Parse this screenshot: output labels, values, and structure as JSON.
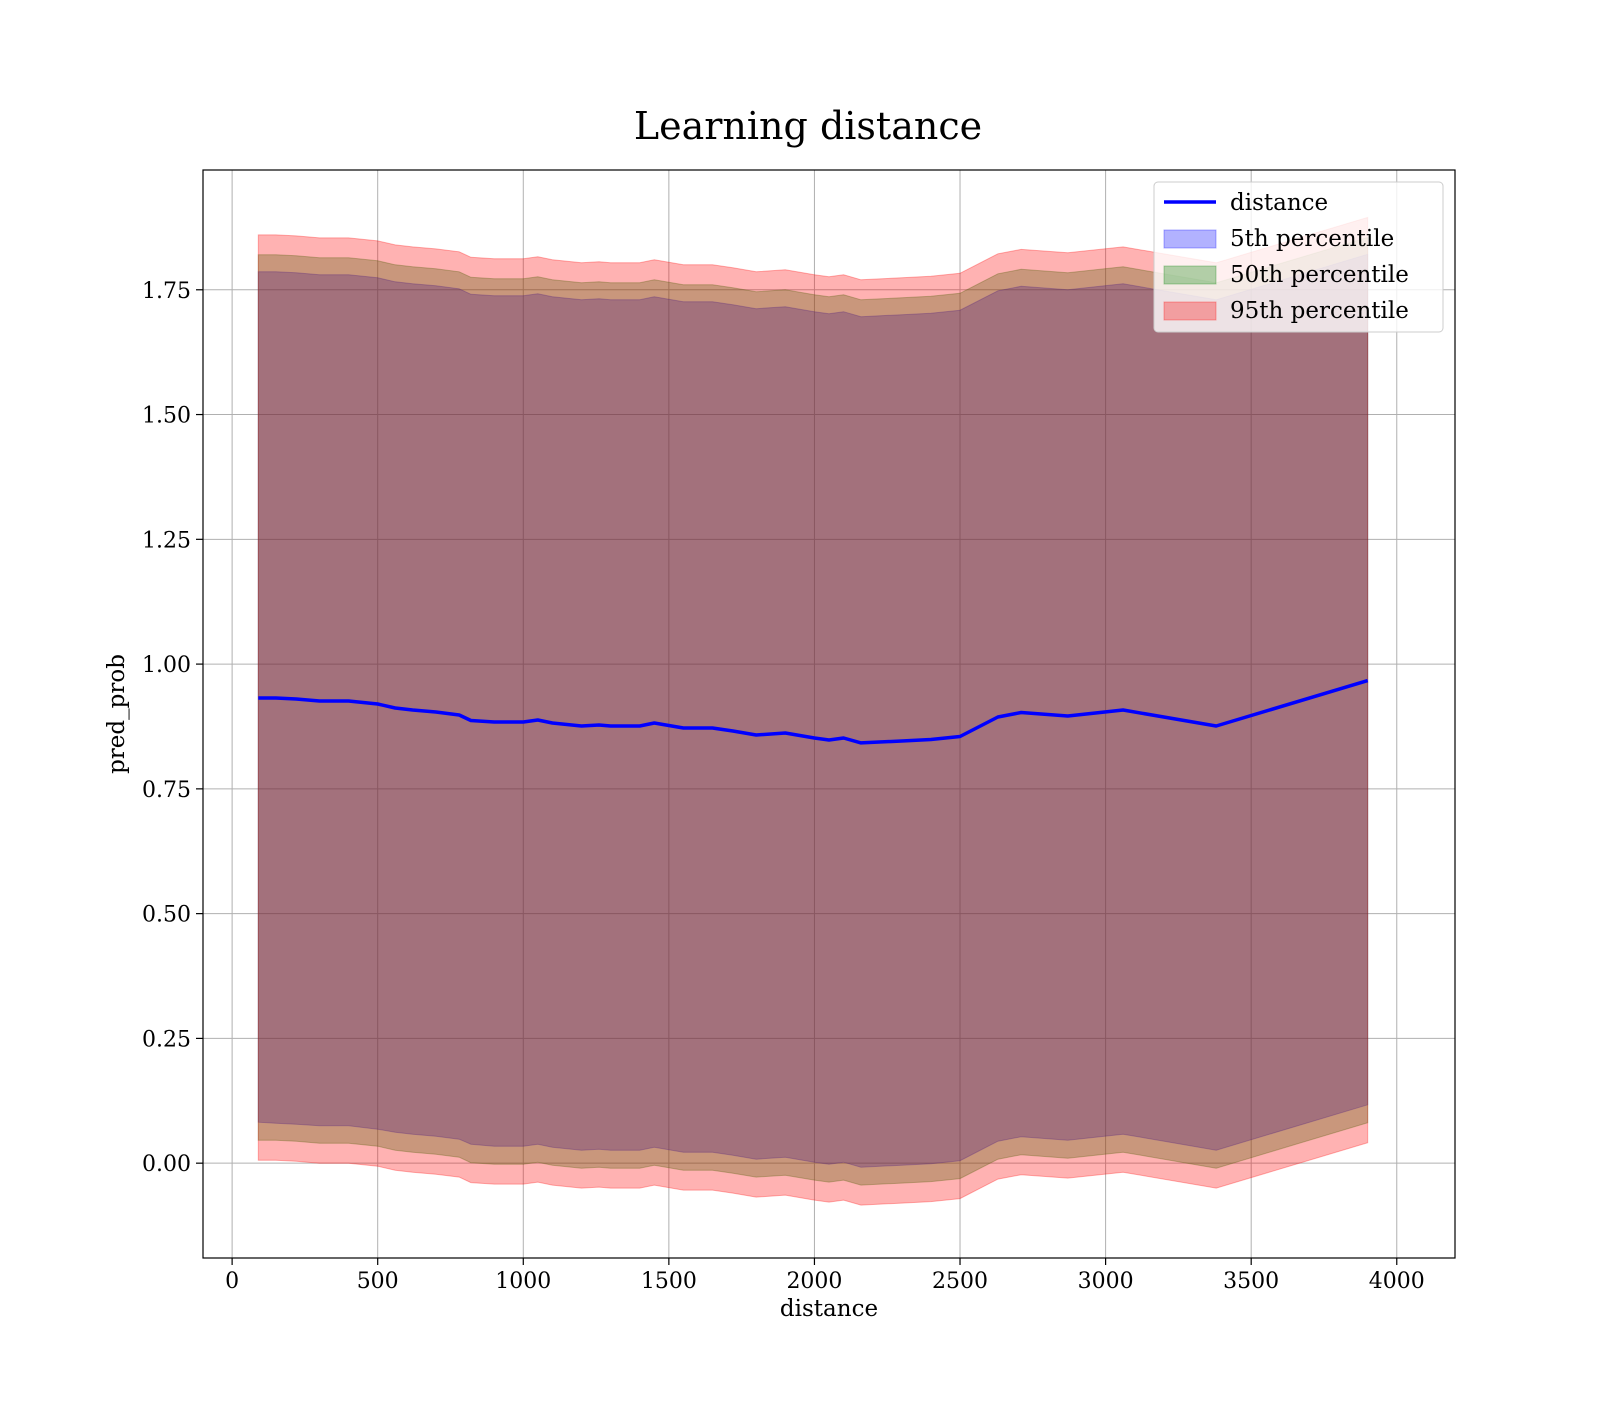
{
  "chart_data": {
    "type": "area",
    "title": "Learning distance",
    "xlabel": "distance",
    "ylabel": "pred_prob",
    "xlim": [
      -100,
      4200
    ],
    "ylim": [
      -0.19,
      1.99
    ],
    "xticks": [
      0,
      500,
      1000,
      1500,
      2000,
      2500,
      3000,
      3500,
      4000
    ],
    "xtick_labels": [
      "0",
      "500",
      "1000",
      "1500",
      "2000",
      "2500",
      "3000",
      "3500",
      "4000"
    ],
    "yticks": [
      0.0,
      0.25,
      0.5,
      0.75,
      1.0,
      1.25,
      1.5,
      1.75
    ],
    "ytick_labels": [
      "0.00",
      "0.25",
      "0.50",
      "0.75",
      "1.00",
      "1.25",
      "1.50",
      "1.75"
    ],
    "grid": true,
    "legend_position": "top-right",
    "x": [
      90,
      150,
      220,
      300,
      400,
      500,
      560,
      620,
      700,
      780,
      820,
      900,
      1000,
      1050,
      1100,
      1200,
      1260,
      1300,
      1400,
      1450,
      1550,
      1650,
      1720,
      1800,
      1900,
      2000,
      2050,
      2100,
      2160,
      2300,
      2400,
      2500,
      2630,
      2710,
      2870,
      3060,
      3380,
      3900
    ],
    "series": [
      {
        "name": "distance",
        "kind": "line",
        "color": "#0000ff",
        "values": [
          0.932,
          0.932,
          0.93,
          0.926,
          0.926,
          0.92,
          0.912,
          0.908,
          0.904,
          0.898,
          0.887,
          0.884,
          0.884,
          0.888,
          0.882,
          0.876,
          0.878,
          0.876,
          0.876,
          0.882,
          0.872,
          0.872,
          0.866,
          0.858,
          0.862,
          0.852,
          0.848,
          0.852,
          0.842,
          0.846,
          0.849,
          0.855,
          0.894,
          0.903,
          0.896,
          0.908,
          0.876,
          0.967
        ]
      },
      {
        "name": "5th percentile",
        "kind": "band",
        "color": "#0000ff",
        "opacity": 0.3,
        "lower": [
          0.082,
          0.08,
          0.078,
          0.075,
          0.075,
          0.068,
          0.062,
          0.058,
          0.054,
          0.048,
          0.038,
          0.034,
          0.034,
          0.038,
          0.032,
          0.026,
          0.028,
          0.026,
          0.026,
          0.032,
          0.022,
          0.022,
          0.016,
          0.008,
          0.012,
          0.002,
          -0.002,
          0.002,
          -0.008,
          -0.004,
          -0.001,
          0.005,
          0.044,
          0.053,
          0.046,
          0.058,
          0.026,
          0.117
        ],
        "upper": [
          1.786,
          1.786,
          1.784,
          1.78,
          1.78,
          1.774,
          1.766,
          1.762,
          1.758,
          1.752,
          1.741,
          1.738,
          1.738,
          1.742,
          1.736,
          1.73,
          1.732,
          1.73,
          1.73,
          1.736,
          1.726,
          1.726,
          1.72,
          1.712,
          1.716,
          1.706,
          1.702,
          1.706,
          1.696,
          1.7,
          1.703,
          1.709,
          1.748,
          1.757,
          1.75,
          1.762,
          1.73,
          1.821
        ]
      },
      {
        "name": "50th percentile",
        "kind": "band",
        "color": "#008000",
        "opacity": 0.3,
        "lower": [
          0.046,
          0.046,
          0.044,
          0.04,
          0.04,
          0.034,
          0.026,
          0.022,
          0.018,
          0.012,
          0.001,
          -0.002,
          -0.002,
          0.002,
          -0.004,
          -0.01,
          -0.008,
          -0.01,
          -0.01,
          -0.004,
          -0.014,
          -0.014,
          -0.02,
          -0.028,
          -0.024,
          -0.034,
          -0.038,
          -0.034,
          -0.044,
          -0.04,
          -0.037,
          -0.031,
          0.008,
          0.017,
          0.01,
          0.022,
          -0.01,
          0.081
        ],
        "upper": [
          1.82,
          1.82,
          1.818,
          1.814,
          1.814,
          1.808,
          1.8,
          1.796,
          1.792,
          1.786,
          1.775,
          1.772,
          1.772,
          1.776,
          1.77,
          1.764,
          1.766,
          1.764,
          1.764,
          1.77,
          1.76,
          1.76,
          1.754,
          1.746,
          1.75,
          1.74,
          1.736,
          1.74,
          1.73,
          1.734,
          1.737,
          1.743,
          1.782,
          1.791,
          1.784,
          1.796,
          1.764,
          1.855
        ]
      },
      {
        "name": "95th percentile",
        "kind": "band",
        "color": "#ff0000",
        "opacity": 0.3,
        "lower": [
          0.006,
          0.006,
          0.004,
          0.0,
          0.0,
          -0.006,
          -0.014,
          -0.018,
          -0.022,
          -0.028,
          -0.039,
          -0.042,
          -0.042,
          -0.038,
          -0.044,
          -0.05,
          -0.048,
          -0.05,
          -0.05,
          -0.044,
          -0.054,
          -0.054,
          -0.06,
          -0.068,
          -0.064,
          -0.074,
          -0.078,
          -0.074,
          -0.084,
          -0.08,
          -0.077,
          -0.071,
          -0.032,
          -0.023,
          -0.03,
          -0.018,
          -0.05,
          0.041
        ],
        "upper": [
          1.86,
          1.86,
          1.858,
          1.854,
          1.854,
          1.848,
          1.84,
          1.836,
          1.832,
          1.826,
          1.815,
          1.812,
          1.812,
          1.816,
          1.81,
          1.804,
          1.806,
          1.804,
          1.804,
          1.81,
          1.8,
          1.8,
          1.794,
          1.786,
          1.79,
          1.78,
          1.776,
          1.78,
          1.77,
          1.774,
          1.777,
          1.783,
          1.822,
          1.831,
          1.824,
          1.836,
          1.804,
          1.895
        ]
      }
    ]
  }
}
